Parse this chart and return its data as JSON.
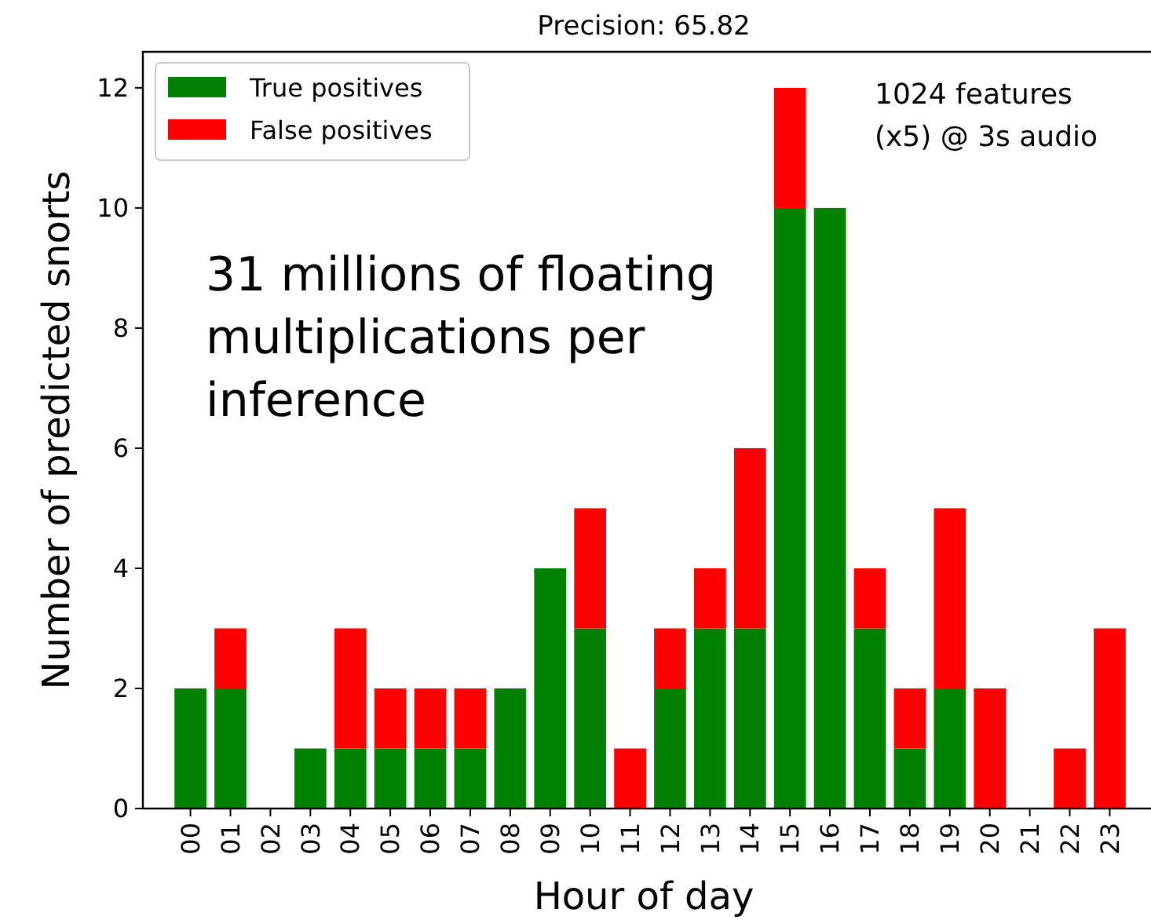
{
  "chart_data": {
    "type": "bar",
    "title": "Precision: 65.82",
    "xlabel": "Hour of day",
    "ylabel": "Number of predicted snorts",
    "categories": [
      "00",
      "01",
      "02",
      "03",
      "04",
      "05",
      "06",
      "07",
      "08",
      "09",
      "10",
      "11",
      "12",
      "13",
      "14",
      "15",
      "16",
      "17",
      "18",
      "19",
      "20",
      "21",
      "22",
      "23"
    ],
    "series": [
      {
        "name": "True positives",
        "color": "#008000",
        "values": [
          2,
          2,
          0,
          1,
          1,
          1,
          1,
          1,
          2,
          4,
          3,
          0,
          2,
          3,
          3,
          10,
          10,
          3,
          1,
          2,
          0,
          0,
          0,
          0
        ]
      },
      {
        "name": "False positives",
        "color": "#ff0000",
        "values": [
          0,
          1,
          0,
          0,
          2,
          1,
          1,
          1,
          0,
          0,
          2,
          1,
          1,
          1,
          3,
          2,
          0,
          1,
          1,
          3,
          2,
          0,
          1,
          3
        ]
      }
    ],
    "stacked": true,
    "ylim": [
      0,
      12.6
    ],
    "yticks": [
      0,
      2,
      4,
      6,
      8,
      10,
      12
    ],
    "legend": "top left",
    "annotations": [
      "1024 features\n(x5)  @ 3s audio",
      "31 millions of floating\nmultiplications per\ninference"
    ]
  }
}
